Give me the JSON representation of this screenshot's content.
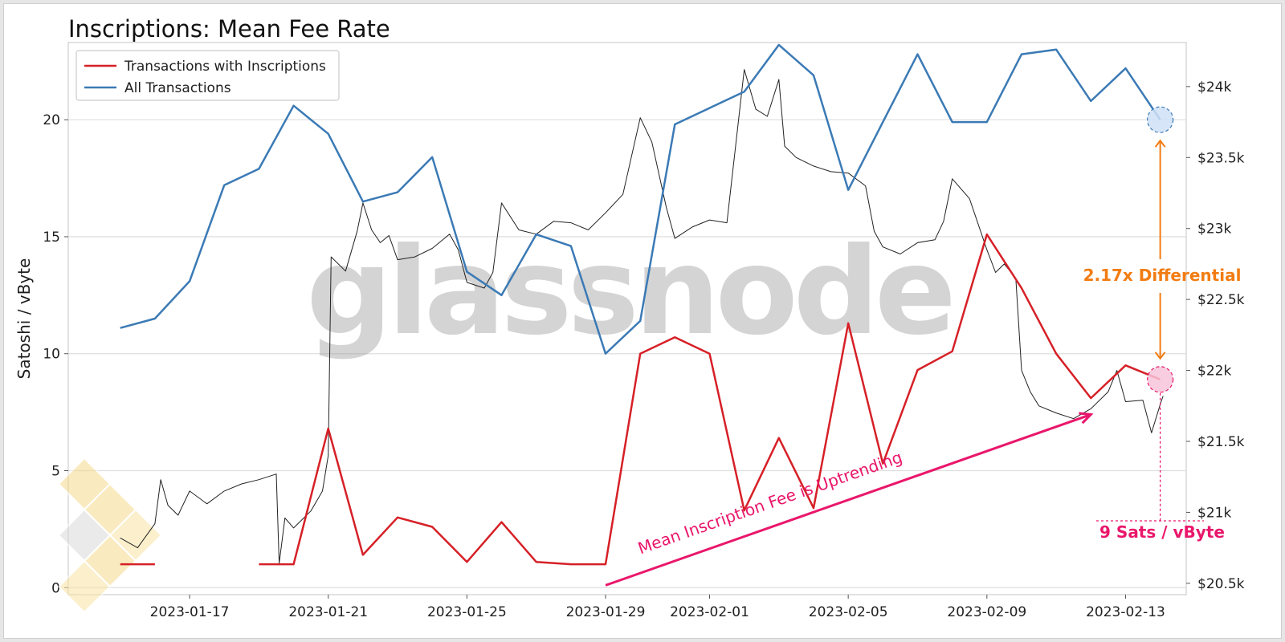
{
  "chart_data": {
    "type": "line",
    "title": "Inscriptions: Mean Fee Rate",
    "ylabel": "Satoshi / vByte",
    "y2label": "",
    "ylim": [
      -0.3,
      23.3
    ],
    "y2lim": [
      20420,
      24310
    ],
    "y_ticks": [
      0,
      5,
      10,
      15,
      20
    ],
    "y2_ticks": [
      20500,
      21000,
      21500,
      22000,
      22500,
      23000,
      23500,
      24000
    ],
    "y2_tick_labels": [
      "$20.5k",
      "$21k",
      "$21.5k",
      "$22k",
      "$22.5k",
      "$23k",
      "$23.5k",
      "$24k"
    ],
    "x_tick_labels": [
      "2023-01-17",
      "2023-01-21",
      "2023-01-25",
      "2023-01-29",
      "2023-02-01",
      "2023-02-05",
      "2023-02-09",
      "2023-02-13"
    ],
    "x_tick_dates": [
      "2023-01-17",
      "2023-01-21",
      "2023-01-25",
      "2023-01-29",
      "2023-02-01",
      "2023-02-05",
      "2023-02-09",
      "2023-02-13"
    ],
    "xlim": [
      "2023-01-13T12:00",
      "2023-02-14T18:00"
    ],
    "grid": true,
    "legend_position": "top-left",
    "series": [
      {
        "name": "Transactions with Inscriptions",
        "color": "#d62027",
        "axis": "left",
        "points": [
          [
            "2023-01-15",
            1.0
          ],
          [
            "2023-01-16",
            1.0
          ],
          null,
          [
            "2023-01-19",
            1.0
          ],
          [
            "2023-01-20",
            1.0
          ],
          [
            "2023-01-21",
            6.8
          ],
          [
            "2023-01-22",
            1.4
          ],
          [
            "2023-01-23",
            3.0
          ],
          [
            "2023-01-24",
            2.6
          ],
          [
            "2023-01-25",
            1.1
          ],
          [
            "2023-01-26",
            2.8
          ],
          [
            "2023-01-27",
            1.1
          ],
          [
            "2023-01-28",
            1.0
          ],
          [
            "2023-01-29",
            1.0
          ],
          [
            "2023-01-30",
            10.0
          ],
          [
            "2023-01-31",
            10.7
          ],
          [
            "2023-02-01",
            10.0
          ],
          [
            "2023-02-02",
            3.3
          ],
          [
            "2023-02-03",
            6.4
          ],
          [
            "2023-02-04",
            3.4
          ],
          [
            "2023-02-05",
            11.3
          ],
          [
            "2023-02-06",
            5.3
          ],
          [
            "2023-02-07",
            9.3
          ],
          [
            "2023-02-08",
            10.1
          ],
          [
            "2023-02-09",
            15.1
          ],
          [
            "2023-02-10",
            12.8
          ],
          [
            "2023-02-11",
            10.0
          ],
          [
            "2023-02-12",
            8.1
          ],
          [
            "2023-02-13",
            9.5
          ],
          [
            "2023-02-14",
            8.9
          ]
        ]
      },
      {
        "name": "All Transactions",
        "color": "#3b7ab5",
        "axis": "left",
        "points": [
          [
            "2023-01-15",
            11.1
          ],
          [
            "2023-01-16",
            11.5
          ],
          [
            "2023-01-17",
            13.1
          ],
          [
            "2023-01-18",
            17.2
          ],
          [
            "2023-01-19",
            17.9
          ],
          [
            "2023-01-20",
            20.6
          ],
          [
            "2023-01-21",
            19.4
          ],
          [
            "2023-01-22",
            16.5
          ],
          [
            "2023-01-23",
            16.9
          ],
          [
            "2023-01-24",
            18.4
          ],
          [
            "2023-01-25",
            13.5
          ],
          [
            "2023-01-26",
            12.5
          ],
          [
            "2023-01-27",
            15.1
          ],
          [
            "2023-01-28",
            14.6
          ],
          [
            "2023-01-29",
            10.0
          ],
          [
            "2023-01-30",
            11.4
          ],
          [
            "2023-01-31",
            19.8
          ],
          [
            "2023-02-01",
            20.5
          ],
          [
            "2023-02-02",
            21.2
          ],
          [
            "2023-02-03",
            23.2
          ],
          [
            "2023-02-04",
            21.9
          ],
          [
            "2023-02-05",
            17.0
          ],
          [
            "2023-02-06",
            19.9
          ],
          [
            "2023-02-07",
            22.8
          ],
          [
            "2023-02-08",
            19.9
          ],
          [
            "2023-02-09",
            19.9
          ],
          [
            "2023-02-10",
            22.8
          ],
          [
            "2023-02-11",
            23.0
          ],
          [
            "2023-02-12",
            20.8
          ],
          [
            "2023-02-13",
            22.2
          ],
          [
            "2023-02-14",
            20.0
          ]
        ]
      },
      {
        "color": "#222222",
        "axis": "right",
        "points": [
          [
            "2023-01-15",
            20820
          ],
          [
            "2023-01-15T12:00",
            20750
          ],
          [
            "2023-01-16",
            20920
          ],
          [
            "2023-01-16T04:00",
            21230
          ],
          [
            "2023-01-16T09:00",
            21050
          ],
          [
            "2023-01-16T16:00",
            20980
          ],
          [
            "2023-01-17",
            21150
          ],
          [
            "2023-01-17T12:00",
            21060
          ],
          [
            "2023-01-18",
            21150
          ],
          [
            "2023-01-18T12:00",
            21200
          ],
          [
            "2023-01-19",
            21230
          ],
          [
            "2023-01-19T12:00",
            21270
          ],
          [
            "2023-01-19T14:00",
            20640
          ],
          [
            "2023-01-19T18:00",
            20960
          ],
          [
            "2023-01-20",
            20890
          ],
          [
            "2023-01-20T12:00",
            21010
          ],
          [
            "2023-01-20T20:00",
            21150
          ],
          [
            "2023-01-21",
            21400
          ],
          [
            "2023-01-21T02:00",
            22800
          ],
          [
            "2023-01-21T12:00",
            22700
          ],
          [
            "2023-01-21T20:00",
            22980
          ],
          [
            "2023-01-22",
            23180
          ],
          [
            "2023-01-22T06:00",
            22990
          ],
          [
            "2023-01-22T12:00",
            22900
          ],
          [
            "2023-01-22T18:00",
            22950
          ],
          [
            "2023-01-23",
            22780
          ],
          [
            "2023-01-23T12:00",
            22800
          ],
          [
            "2023-01-24",
            22860
          ],
          [
            "2023-01-24T12:00",
            22960
          ],
          [
            "2023-01-24T18:00",
            22850
          ],
          [
            "2023-01-25",
            22620
          ],
          [
            "2023-01-25T12:00",
            22580
          ],
          [
            "2023-01-25T18:00",
            22690
          ],
          [
            "2023-01-26",
            23180
          ],
          [
            "2023-01-26T12:00",
            22990
          ],
          [
            "2023-01-27",
            22960
          ],
          [
            "2023-01-27T12:00",
            23050
          ],
          [
            "2023-01-28",
            23040
          ],
          [
            "2023-01-28T12:00",
            22990
          ],
          [
            "2023-01-29",
            23110
          ],
          [
            "2023-01-29T12:00",
            23240
          ],
          [
            "2023-01-30",
            23780
          ],
          [
            "2023-01-30T08:00",
            23610
          ],
          [
            "2023-01-30T18:00",
            23150
          ],
          [
            "2023-01-31",
            22930
          ],
          [
            "2023-01-31T12:00",
            23010
          ],
          [
            "2023-02-01",
            23060
          ],
          [
            "2023-02-01T12:00",
            23040
          ],
          [
            "2023-02-02",
            24120
          ],
          [
            "2023-02-02T08:00",
            23840
          ],
          [
            "2023-02-02T16:00",
            23790
          ],
          [
            "2023-02-03",
            24050
          ],
          [
            "2023-02-03T04:00",
            23580
          ],
          [
            "2023-02-03T12:00",
            23500
          ],
          [
            "2023-02-04",
            23440
          ],
          [
            "2023-02-04T12:00",
            23400
          ],
          [
            "2023-02-05",
            23390
          ],
          [
            "2023-02-05T12:00",
            23300
          ],
          [
            "2023-02-05T18:00",
            22980
          ],
          [
            "2023-02-06",
            22870
          ],
          [
            "2023-02-06T12:00",
            22820
          ],
          [
            "2023-02-07",
            22900
          ],
          [
            "2023-02-07T12:00",
            22920
          ],
          [
            "2023-02-07T18:00",
            23050
          ],
          [
            "2023-02-08",
            23350
          ],
          [
            "2023-02-08T12:00",
            23210
          ],
          [
            "2023-02-09",
            22850
          ],
          [
            "2023-02-09T06:00",
            22690
          ],
          [
            "2023-02-09T12:00",
            22750
          ],
          [
            "2023-02-09T20:00",
            22650
          ],
          [
            "2023-02-10",
            22000
          ],
          [
            "2023-02-10T06:00",
            21850
          ],
          [
            "2023-02-10T12:00",
            21750
          ],
          [
            "2023-02-11",
            21700
          ],
          [
            "2023-02-11T12:00",
            21660
          ],
          [
            "2023-02-12",
            21730
          ],
          [
            "2023-02-12T12:00",
            21850
          ],
          [
            "2023-02-12T18:00",
            22000
          ],
          [
            "2023-02-13",
            21780
          ],
          [
            "2023-02-13T12:00",
            21790
          ],
          [
            "2023-02-13T18:00",
            21560
          ],
          [
            "2023-02-14",
            21760
          ],
          [
            "2023-02-14T02:00",
            21820
          ]
        ]
      }
    ],
    "annotations": {
      "differential": "2.17x Differential",
      "value_callout": "9 Sats / vByte",
      "trend": "Mean Inscription Fee is Uptrending"
    },
    "colors": {
      "inscriptions": "#d62027",
      "all": "#3b7ab5",
      "price": "#222222",
      "orange": "#f27c12",
      "pink": "#e9176b"
    },
    "watermark": "glassnode"
  }
}
